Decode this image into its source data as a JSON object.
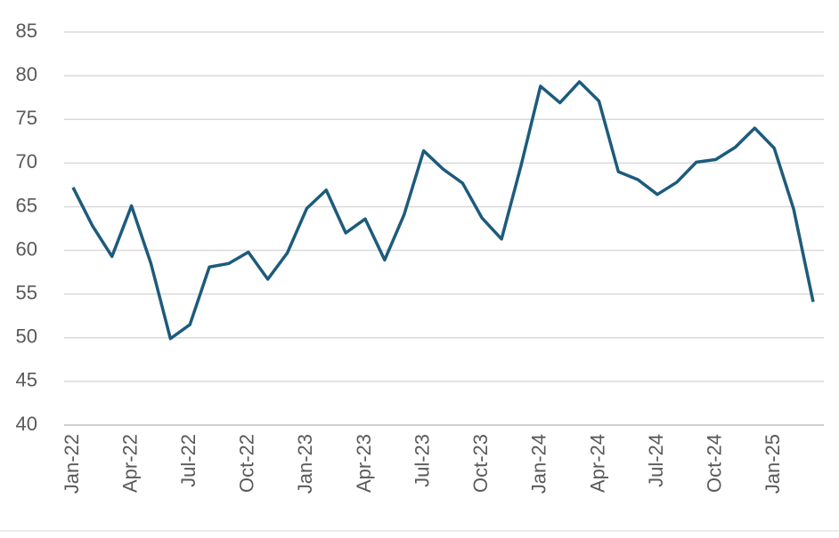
{
  "chart_data": {
    "type": "line",
    "categories": [
      "Jan-22",
      null,
      null,
      "Apr-22",
      null,
      null,
      "Jul-22",
      null,
      null,
      "Oct-22",
      null,
      null,
      "Jan-23",
      null,
      null,
      "Apr-23",
      null,
      null,
      "Jul-23",
      null,
      null,
      "Oct-23",
      null,
      null,
      "Jan-24",
      null,
      null,
      "Apr-24",
      null,
      null,
      "Jul-24",
      null,
      null,
      "Oct-24",
      null,
      null,
      "Jan-25",
      null,
      null
    ],
    "series": [
      {
        "color": "#1d5b7c",
        "values": [
          67.2,
          62.8,
          59.3,
          65.1,
          58.5,
          49.9,
          51.5,
          58.1,
          58.5,
          59.8,
          56.7,
          59.7,
          64.8,
          66.9,
          62.0,
          63.6,
          58.9,
          64.1,
          71.4,
          69.3,
          67.7,
          63.7,
          61.3,
          69.7,
          78.8,
          76.9,
          79.3,
          77.1,
          69.0,
          68.1,
          66.4,
          67.8,
          70.1,
          70.4,
          71.8,
          74.0,
          71.7,
          64.7,
          54.1
        ]
      }
    ],
    "ylim": [
      40,
      85
    ],
    "yticks": [
      40,
      45,
      50,
      55,
      60,
      65,
      70,
      75,
      80,
      85
    ],
    "grid": true
  }
}
